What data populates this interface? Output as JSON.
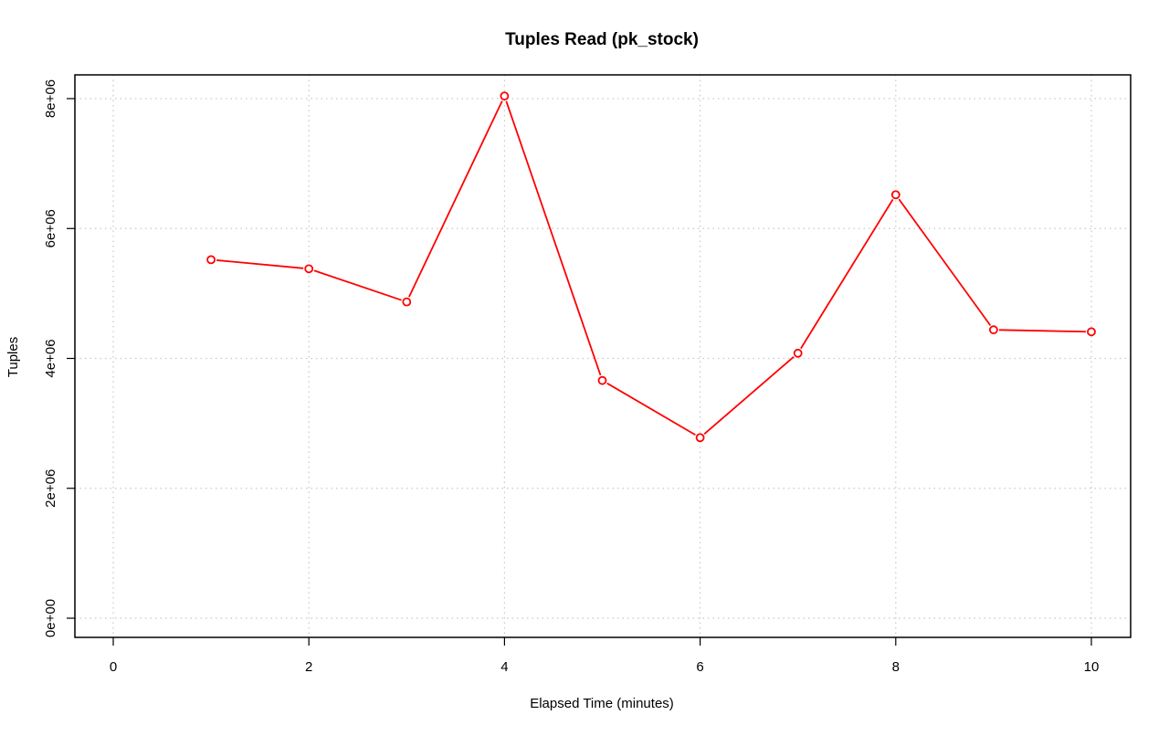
{
  "chart_data": {
    "type": "line",
    "title": "Tuples Read (pk_stock)",
    "xlabel": "Elapsed Time (minutes)",
    "ylabel": "Tuples",
    "xlim": [
      0,
      10
    ],
    "ylim": [
      0,
      8000000
    ],
    "x_ticks": [
      {
        "value": 0,
        "label": "0"
      },
      {
        "value": 2,
        "label": "2"
      },
      {
        "value": 4,
        "label": "4"
      },
      {
        "value": 6,
        "label": "6"
      },
      {
        "value": 8,
        "label": "8"
      },
      {
        "value": 10,
        "label": "10"
      }
    ],
    "y_ticks": [
      {
        "value": 0,
        "label": "0e+00"
      },
      {
        "value": 2000000,
        "label": "2e+06"
      },
      {
        "value": 4000000,
        "label": "4e+06"
      },
      {
        "value": 6000000,
        "label": "6e+06"
      },
      {
        "value": 8000000,
        "label": "8e+06"
      }
    ],
    "grid": true,
    "series": [
      {
        "color": "#ff0000",
        "x": [
          1,
          2,
          3,
          4,
          5,
          6,
          7,
          8,
          9,
          10
        ],
        "values": [
          5520000,
          5380000,
          4870000,
          8040000,
          3660000,
          2780000,
          4080000,
          6520000,
          4440000,
          4410000
        ]
      }
    ]
  }
}
